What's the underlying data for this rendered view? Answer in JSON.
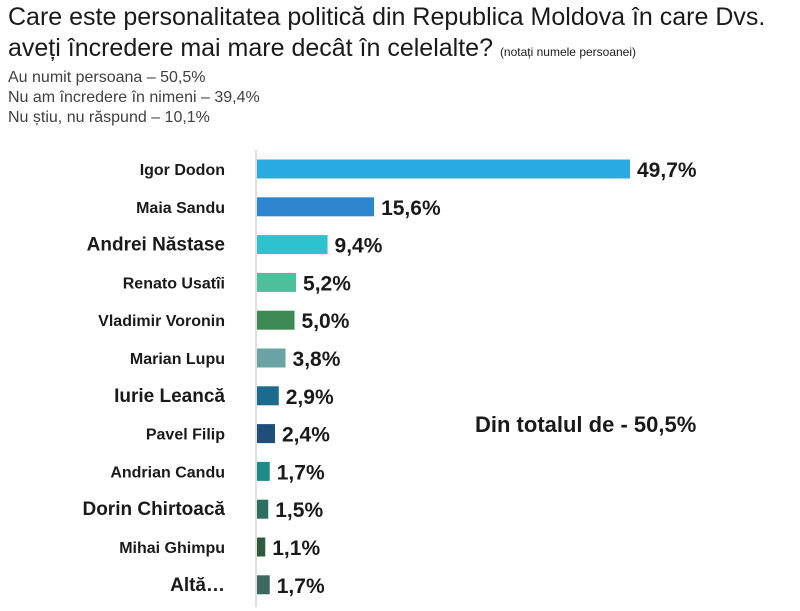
{
  "title": "Care este personalitatea politică din Republica Moldova în care Dvs. aveți încredere mai mare decât în celelalte?",
  "title_note": "(notați numele persoanei)",
  "summary": [
    "Au numit persoana – 50,5%",
    "Nu am încredere în nimeni – 39,4%",
    "Nu știu, nu răspund – 10,1%"
  ],
  "total_note": "Din totalul de  - 50,5%",
  "chart_data": {
    "type": "bar",
    "orientation": "horizontal",
    "categories": [
      "Igor Dodon",
      "Maia Sandu",
      "Andrei Năstase",
      "Renato Usatîi",
      "Vladimir Voronin",
      "Marian Lupu",
      "Iurie Leancă",
      "Pavel Filip",
      "Andrian Candu",
      "Dorin Chirtoacă",
      "Mihai Ghimpu",
      "Altă…"
    ],
    "values": [
      49.7,
      15.6,
      9.4,
      5.2,
      5.0,
      3.8,
      2.9,
      2.4,
      1.7,
      1.5,
      1.1,
      1.7
    ],
    "value_labels": [
      "49,7%",
      "15,6%",
      "9,4%",
      "5,2%",
      "5,0%",
      "3,8%",
      "2,9%",
      "2,4%",
      "1,7%",
      "1,5%",
      "1,1%",
      "1,7%"
    ],
    "colors": [
      "#29abe2",
      "#2e86cf",
      "#2cc3cf",
      "#4dbf9c",
      "#3d8a55",
      "#6aa3a3",
      "#1d6b8c",
      "#1f4e79",
      "#1f8a8a",
      "#2e6e60",
      "#2f5a3c",
      "#3c6a62"
    ],
    "xlim": [
      0,
      50
    ],
    "grid": false,
    "legend": "none"
  }
}
